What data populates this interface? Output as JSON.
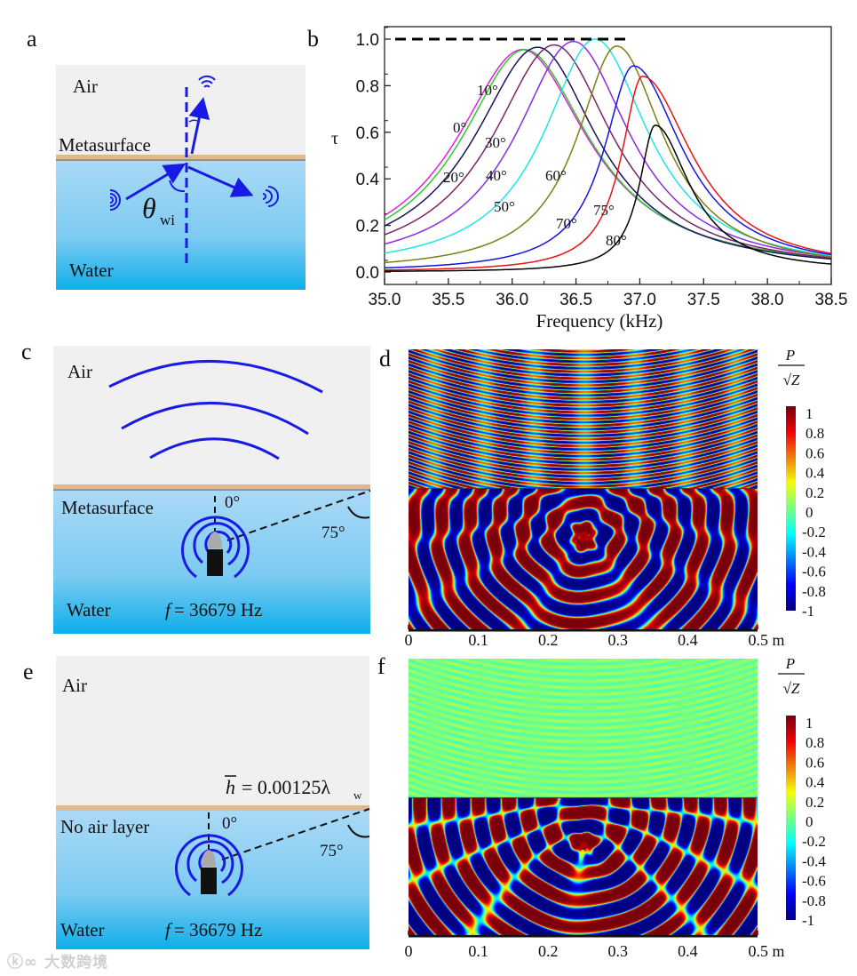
{
  "panel_labels": {
    "a": "a",
    "b": "b",
    "c": "c",
    "d": "d",
    "e": "e",
    "f": "f"
  },
  "panel_a": {
    "air": "Air",
    "metasurface": "Metasurface",
    "water": "Water",
    "theta": "θ",
    "theta_sub": "wi"
  },
  "panel_c": {
    "air": "Air",
    "metasurface": "Metasurface",
    "water": "Water",
    "angle_0": "0°",
    "angle_75": "75°",
    "freq_f": "f",
    "freq_value": "= 36679 Hz"
  },
  "panel_e": {
    "air": "Air",
    "no_air_layer": "No air layer",
    "water": "Water",
    "angle_0": "0°",
    "angle_75": "75°",
    "freq_f": "f",
    "freq_value": "= 36679 Hz",
    "h_label": "h",
    "h_value": "= 0.00125λ",
    "h_sub": "w"
  },
  "field_maps": {
    "x_ticks": [
      "0",
      "0.1",
      "0.2",
      "0.3",
      "0.4",
      "0.5 m"
    ],
    "colorbar_title_num": "P",
    "colorbar_title_den": "√Z",
    "colorbar_ticks": [
      "1",
      "0.8",
      "0.6",
      "0.4",
      "0.2",
      "0",
      "-0.2",
      "-0.4",
      "-0.6",
      "-0.8",
      "-1"
    ],
    "colorbar_range": [
      -1,
      1
    ],
    "d_upper_amplitude": 1.0,
    "f_upper_amplitude": 0.08
  },
  "chart_data": {
    "type": "line",
    "title": "",
    "xlabel": "Frequency (kHz)",
    "ylabel": "τ",
    "xlim": [
      35.0,
      38.5
    ],
    "ylim": [
      0.0,
      1.0
    ],
    "x_ticks": [
      "35.0",
      "35.5",
      "36.0",
      "36.5",
      "37.0",
      "37.5",
      "38.0",
      "38.5"
    ],
    "y_ticks": [
      "0.0",
      "0.2",
      "0.4",
      "0.6",
      "0.8",
      "1.0"
    ],
    "reference_line": {
      "y": 1.0,
      "x_range": [
        35.0,
        36.9
      ],
      "style": "dashed",
      "color": "#000000"
    },
    "model": "peak_y / (1 + ((x - peak_x)/width)^2), width_left below peak, width_right above",
    "series": [
      {
        "name": "0°",
        "color": "#e021e0",
        "peak_x": 36.08,
        "peak_y": 0.955,
        "width_left": 0.63,
        "width_right": 0.63
      },
      {
        "name": "10°",
        "color": "#2ccc2c",
        "peak_x": 36.1,
        "peak_y": 0.955,
        "width_left": 0.61,
        "width_right": 0.62
      },
      {
        "name": "20°",
        "color": "#14145e",
        "peak_x": 36.2,
        "peak_y": 0.965,
        "width_left": 0.61,
        "width_right": 0.57
      },
      {
        "name": "30°",
        "color": "#7a2468",
        "peak_x": 36.33,
        "peak_y": 0.975,
        "width_left": 0.59,
        "width_right": 0.56
      },
      {
        "name": "40°",
        "color": "#8a2be2",
        "peak_x": 36.48,
        "peak_y": 0.99,
        "width_left": 0.55,
        "width_right": 0.54
      },
      {
        "name": "50°",
        "color": "#22e4e4",
        "peak_x": 36.65,
        "peak_y": 1.0,
        "width_left": 0.49,
        "width_right": 0.51
      },
      {
        "name": "60°",
        "color": "#7e7e12",
        "peak_x": 36.82,
        "peak_y": 0.97,
        "width_left": 0.38,
        "width_right": 0.45
      },
      {
        "name": "70°",
        "color": "#1414e0",
        "peak_x": 36.95,
        "peak_y": 0.885,
        "width_left": 0.28,
        "width_right": 0.47
      },
      {
        "name": "75°",
        "color": "#e81414",
        "peak_x": 37.02,
        "peak_y": 0.84,
        "width_left": 0.2,
        "width_right": 0.48
      },
      {
        "name": "80°",
        "color": "#000000",
        "peak_x": 37.12,
        "peak_y": 0.63,
        "width_left": 0.15,
        "width_right": 0.33
      }
    ]
  },
  "watermark": "大数跨境"
}
